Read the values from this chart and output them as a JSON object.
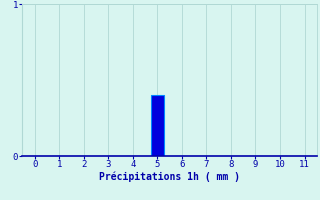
{
  "categories": [
    0,
    1,
    2,
    3,
    4,
    5,
    6,
    7,
    8,
    9,
    10,
    11
  ],
  "values": [
    0,
    0,
    0,
    0,
    0,
    0.4,
    0,
    0,
    0,
    0,
    0,
    0
  ],
  "bar_color": "#0000dd",
  "bar_edge_color": "#0088ff",
  "xlabel": "Précipitations 1h ( mm )",
  "ylim": [
    0,
    1
  ],
  "yticks": [
    0,
    1
  ],
  "xticks": [
    0,
    1,
    2,
    3,
    4,
    5,
    6,
    7,
    8,
    9,
    10,
    11
  ],
  "background_color": "#d8f5f0",
  "grid_color": "#b0d8d4",
  "tick_color": "#0000aa",
  "label_color": "#0000aa",
  "label_fontsize": 7,
  "tick_fontsize": 6.5,
  "bar_width": 0.55
}
